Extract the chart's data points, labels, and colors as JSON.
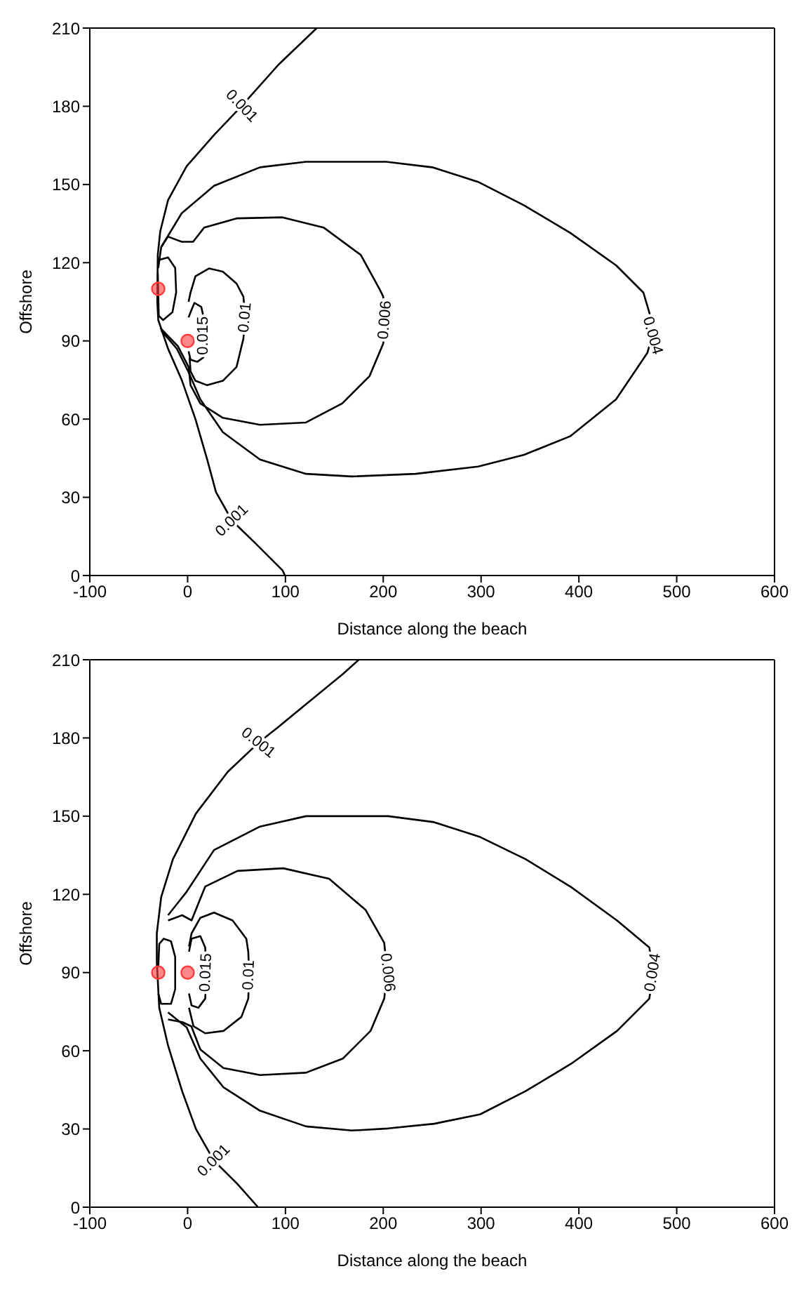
{
  "chart_data": [
    {
      "type": "line",
      "xlabel": "Distance along the beach",
      "ylabel": "Offshore",
      "xlim": [
        -100,
        600
      ],
      "xticks": [
        -100,
        0,
        100,
        200,
        300,
        400,
        500,
        600
      ],
      "ylim": [
        0,
        210
      ],
      "yticks": [
        0,
        30,
        60,
        90,
        120,
        150,
        180,
        210
      ],
      "line_style": "solid",
      "series": [
        {
          "type": "line",
          "color": "#000000",
          "x": [
            132,
            93,
            55,
            27,
            -1,
            -20,
            -28,
            -30.5,
            -31,
            -30,
            -20,
            -6,
            8,
            20,
            29,
            45.5,
            69,
            97,
            99.5
          ],
          "values": [
            210,
            196,
            180,
            169,
            157,
            144,
            132,
            123,
            105,
            98,
            87,
            75,
            60,
            44.5,
            32,
            21,
            12.5,
            2,
            0
          ]
        },
        {
          "type": "line",
          "color": "#000000",
          "x": [
            -30,
            -27,
            -6,
            27,
            74,
            121,
            203,
            250,
            297,
            344,
            391,
            438,
            466,
            473,
            475,
            470,
            438,
            391,
            344,
            297,
            233,
            168,
            121,
            74,
            36,
            13,
            1,
            -11,
            -27
          ],
          "values": [
            118,
            126,
            139,
            149.5,
            156.6,
            158.7,
            158.7,
            156.6,
            151,
            142,
            131.5,
            119,
            108.5,
            99.6,
            92,
            85.4,
            67.6,
            53.4,
            46.3,
            41.8,
            39,
            38,
            39,
            44.5,
            55,
            67.6,
            78,
            87,
            94
          ]
        },
        {
          "type": "line",
          "color": "#000000",
          "x": [
            -27,
            -20,
            -6,
            5.6,
            17,
            50,
            97,
            139,
            177,
            196,
            200,
            202,
            200,
            186,
            158,
            121,
            74,
            36,
            13,
            3,
            1,
            -10,
            -28
          ],
          "values": [
            126,
            130,
            128,
            128,
            133.5,
            137,
            137.4,
            133.5,
            123,
            110,
            107,
            98,
            89,
            76.5,
            66,
            58.7,
            57.8,
            60.5,
            66,
            73,
            80,
            88,
            95
          ]
        },
        {
          "type": "line",
          "color": "#000000",
          "x": [
            1,
            3,
            8,
            22,
            36,
            50,
            57,
            59,
            57,
            50,
            36,
            20,
            8,
            3,
            2
          ],
          "values": [
            105,
            108.6,
            114.8,
            117.8,
            116.6,
            112,
            107,
            99,
            90.8,
            80,
            74.7,
            73,
            74.7,
            78.3,
            83.6
          ]
        },
        {
          "type": "line",
          "color": "#000000",
          "x": [
            1,
            3,
            7,
            14,
            16,
            16,
            10,
            3,
            1
          ],
          "values": [
            99,
            101,
            104.6,
            103,
            99.6,
            83.6,
            82,
            82.8,
            86
          ]
        },
        {
          "color": "#000000",
          "x": [
            -29.5,
            -20,
            -12.7,
            -11.7,
            -15.5,
            -25,
            -29.5,
            -30.5
          ],
          "values": [
            121,
            122,
            118,
            108.6,
            101,
            98,
            99.6,
            116
          ]
        },
        {
          "type": "scatter",
          "color": "#ff3b3b",
          "marker": "circle",
          "x": [
            -30,
            0
          ],
          "values": [
            110,
            90
          ]
        }
      ],
      "annotations": [
        {
          "text": "0.001",
          "x": 55,
          "y": 180
        },
        {
          "text": "0.001",
          "x": 45.5,
          "y": 21
        },
        {
          "text": "0.015",
          "x": 16,
          "y": 92
        },
        {
          "text": "0.01",
          "x": 59,
          "y": 99
        },
        {
          "text": "0.006",
          "x": 202,
          "y": 98
        },
        {
          "text": "0.004",
          "x": 475,
          "y": 92
        }
      ]
    },
    {
      "type": "line",
      "xlabel": "Distance along the beach",
      "ylabel": "Offshore",
      "xlim": [
        -100,
        600
      ],
      "xticks": [
        -100,
        0,
        100,
        200,
        300,
        400,
        500,
        600
      ],
      "ylim": [
        0,
        210
      ],
      "yticks": [
        0,
        30,
        60,
        90,
        120,
        150,
        180,
        210
      ],
      "line_style": "solid",
      "series": [
        {
          "type": "line",
          "color": "#000000",
          "x": [
            175,
            159,
            93,
            72,
            41,
            8.5,
            -15,
            -27,
            -31.5,
            -31.5,
            -29,
            -20,
            -5.6,
            8.5,
            27,
            50.7,
            72
          ],
          "values": [
            210,
            204.6,
            184.3,
            178,
            167,
            151,
            133.5,
            119,
            105,
            94,
            76.5,
            62,
            44.5,
            30,
            17.8,
            9,
            0
          ]
        },
        {
          "type": "line",
          "color": "#000000",
          "x": [
            -20,
            -1,
            27,
            74,
            121,
            205,
            252,
            299,
            345.5,
            392,
            439,
            472,
            476,
            472,
            439,
            392,
            345.5,
            299,
            252,
            205,
            168,
            121,
            74,
            36.6,
            13,
            -1,
            -20
          ],
          "values": [
            112,
            121,
            137,
            146,
            150,
            150,
            147.7,
            142,
            133.5,
            122.8,
            110,
            99.6,
            90,
            80,
            67.6,
            55,
            44.5,
            35.6,
            32,
            30.2,
            29.4,
            31,
            37,
            46,
            57,
            69,
            74.7
          ]
        },
        {
          "type": "line",
          "color": "#000000",
          "x": [
            -20,
            -5.6,
            4,
            18,
            51,
            97.7,
            144.6,
            182,
            201,
            204,
            201,
            187,
            158.7,
            121,
            74,
            36.6,
            13,
            3.8,
            -5.6,
            -20
          ],
          "values": [
            110,
            112,
            110,
            123,
            129,
            130,
            126,
            114,
            101.4,
            90,
            80,
            67.6,
            57,
            51.6,
            50.7,
            53.4,
            60.5,
            69.4,
            71,
            72
          ]
        },
        {
          "type": "line",
          "color": "#000000",
          "x": [
            1.4,
            4,
            13,
            27,
            46,
            60,
            62,
            63,
            62,
            55,
            36.6,
            18,
            6,
            1.4
          ],
          "values": [
            100,
            105,
            111,
            113,
            110,
            103,
            98,
            89,
            80,
            73,
            67.6,
            66.7,
            69.4,
            76.5
          ]
        },
        {
          "type": "line",
          "color": "#000000",
          "x": [
            1.4,
            4,
            13,
            18,
            19,
            18,
            11,
            4,
            1.4
          ],
          "values": [
            98,
            103,
            104,
            99.6,
            90,
            80,
            76.5,
            77.4,
            82
          ]
        },
        {
          "color": "#000000",
          "x": [
            -30,
            -29,
            -24.4,
            -17,
            -12.7,
            -12.7,
            -17,
            -27,
            -30
          ],
          "values": [
            92,
            101,
            103,
            102,
            96,
            83.6,
            78,
            78,
            82
          ]
        },
        {
          "type": "scatter",
          "color": "#ff3b3b",
          "marker": "circle",
          "x": [
            -30,
            0
          ],
          "values": [
            90,
            90
          ]
        }
      ],
      "annotations": [
        {
          "text": "0.001",
          "x": 72,
          "y": 178
        },
        {
          "text": "0.001",
          "x": 27,
          "y": 17.8
        },
        {
          "text": "0.015",
          "x": 19,
          "y": 90
        },
        {
          "text": "0.01",
          "x": 63,
          "y": 89
        },
        {
          "text": "0.006",
          "x": 204,
          "y": 90
        },
        {
          "text": "0.004",
          "x": 476,
          "y": 90
        }
      ]
    }
  ]
}
